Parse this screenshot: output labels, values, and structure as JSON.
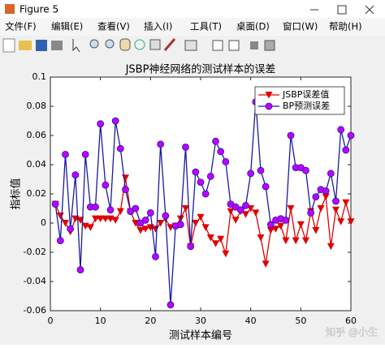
{
  "window": {
    "title": "Figure 5",
    "menu": [
      "文件(F)",
      "编辑(E)",
      "查看(V)",
      "插入(I)",
      "工具(T)",
      "桌面(D)",
      "窗口(W)",
      "帮助(H)"
    ]
  },
  "chart_data": {
    "type": "line",
    "title": "JSBP神经网络的测试样本的误差",
    "x_label": "测试样本编号",
    "y_label": "指标值",
    "x": [
      1,
      2,
      3,
      4,
      5,
      6,
      7,
      8,
      9,
      10,
      11,
      12,
      13,
      14,
      15,
      16,
      17,
      18,
      19,
      20,
      21,
      22,
      23,
      24,
      25,
      26,
      27,
      28,
      29,
      30,
      31,
      32,
      33,
      34,
      35,
      36,
      37,
      38,
      39,
      40,
      41,
      42,
      43,
      44,
      45,
      46,
      47,
      48,
      49,
      50,
      51,
      52,
      53,
      54,
      55,
      56,
      57,
      58,
      59,
      60
    ],
    "series": [
      {
        "name": "JSBP误差值",
        "color": "#e00000",
        "marker": "triangle-down",
        "marker_color": "#e00000",
        "values": [
          0.013,
          0.005,
          0.0,
          -0.006,
          0.003,
          0.002,
          -0.002,
          -0.003,
          0.003,
          0.003,
          0.003,
          0.003,
          0.002,
          0.008,
          0.031,
          0.008,
          0.0,
          -0.005,
          -0.004,
          -0.003,
          -0.004,
          0.0,
          0.003,
          -0.003,
          -0.002,
          0.003,
          0.01,
          -0.016,
          0.0,
          0.004,
          -0.003,
          -0.01,
          -0.014,
          -0.011,
          -0.021,
          0.008,
          0.002,
          0.008,
          0.006,
          0.01,
          0.007,
          -0.01,
          -0.028,
          -0.005,
          -0.004,
          -0.002,
          -0.012,
          0.01,
          -0.012,
          -0.001,
          -0.012,
          0.008,
          -0.005,
          0.01,
          0.018,
          -0.016,
          0.009,
          0.001,
          0.014,
          0.001
        ]
      },
      {
        "name": "BP预测误差",
        "color": "#1a1aa0",
        "marker": "circle",
        "marker_color": "#c000ff",
        "values": [
          0.013,
          -0.012,
          0.047,
          -0.004,
          0.033,
          -0.032,
          0.047,
          0.011,
          0.011,
          0.068,
          0.026,
          0.009,
          0.07,
          0.051,
          0.023,
          0.008,
          0.01,
          0.0,
          0.002,
          0.007,
          -0.023,
          0.054,
          0.005,
          -0.056,
          -0.002,
          -0.001,
          0.052,
          -0.016,
          0.035,
          0.028,
          0.02,
          0.032,
          0.056,
          0.049,
          0.042,
          0.013,
          0.011,
          0.009,
          0.012,
          0.034,
          0.083,
          0.036,
          0.025,
          -0.001,
          0.002,
          0.003,
          0.002,
          0.06,
          0.038,
          0.038,
          0.036,
          0.007,
          0.018,
          0.023,
          0.022,
          0.034,
          0.015,
          0.064,
          0.05,
          0.06
        ]
      }
    ],
    "xlim": [
      0,
      60
    ],
    "xticks": [
      0,
      10,
      20,
      30,
      40,
      50,
      60
    ],
    "ylim": [
      -0.06,
      0.1
    ],
    "yticks": [
      -0.06,
      -0.04,
      -0.02,
      0,
      0.02,
      0.04,
      0.06,
      0.08,
      0.1
    ],
    "grid": false,
    "legend": "northeast"
  },
  "watermark": "知乎 @小生"
}
